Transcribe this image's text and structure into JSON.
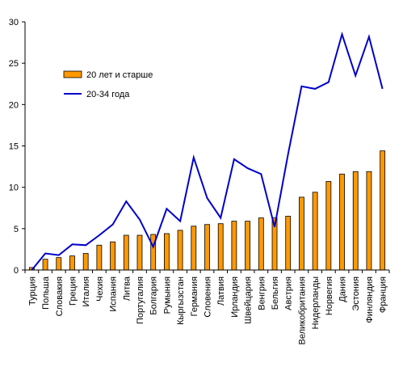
{
  "chart_data": {
    "type": "bar",
    "title": "",
    "xlabel": "",
    "ylabel": "",
    "ylim": [
      0,
      30
    ],
    "yticks": [
      0,
      5,
      10,
      15,
      20,
      25,
      30
    ],
    "grid": false,
    "legend_position": "top-left",
    "categories": [
      "Турция",
      "Польша",
      "Словакия",
      "Греция",
      "Италия",
      "Чехия",
      "Испания",
      "Литва",
      "Португалия",
      "Болгария",
      "Румыния",
      "Кыргызстан",
      "Германия",
      "Словения",
      "Латвия",
      "Ирландия",
      "Швейцария",
      "Венгрия",
      "Бельгия",
      "Австрия",
      "Великобритания",
      "Нидерланды",
      "Норвегия",
      "Дания",
      "Эстония",
      "Финляндия",
      "Франция"
    ],
    "series": [
      {
        "name": "20 лет и старше",
        "type": "bar",
        "color": "#FF9900",
        "values": [
          0.3,
          1.3,
          1.5,
          1.7,
          2.0,
          3.0,
          3.4,
          4.2,
          4.2,
          4.3,
          4.4,
          4.8,
          5.3,
          5.5,
          5.6,
          5.9,
          5.9,
          6.3,
          6.3,
          6.5,
          8.8,
          9.4,
          10.7,
          11.6,
          11.9,
          11.9,
          14.4
        ]
      },
      {
        "name": "20-34 года",
        "type": "line",
        "color": "#0000CC",
        "values": [
          0.0,
          2.0,
          1.8,
          3.1,
          3.0,
          4.2,
          5.5,
          8.3,
          6.1,
          2.8,
          7.4,
          5.9,
          13.6,
          8.7,
          6.3,
          13.4,
          12.3,
          11.6,
          5.2,
          14.0,
          22.2,
          21.9,
          22.7,
          28.5,
          23.5,
          28.2,
          21.9
        ]
      }
    ]
  }
}
